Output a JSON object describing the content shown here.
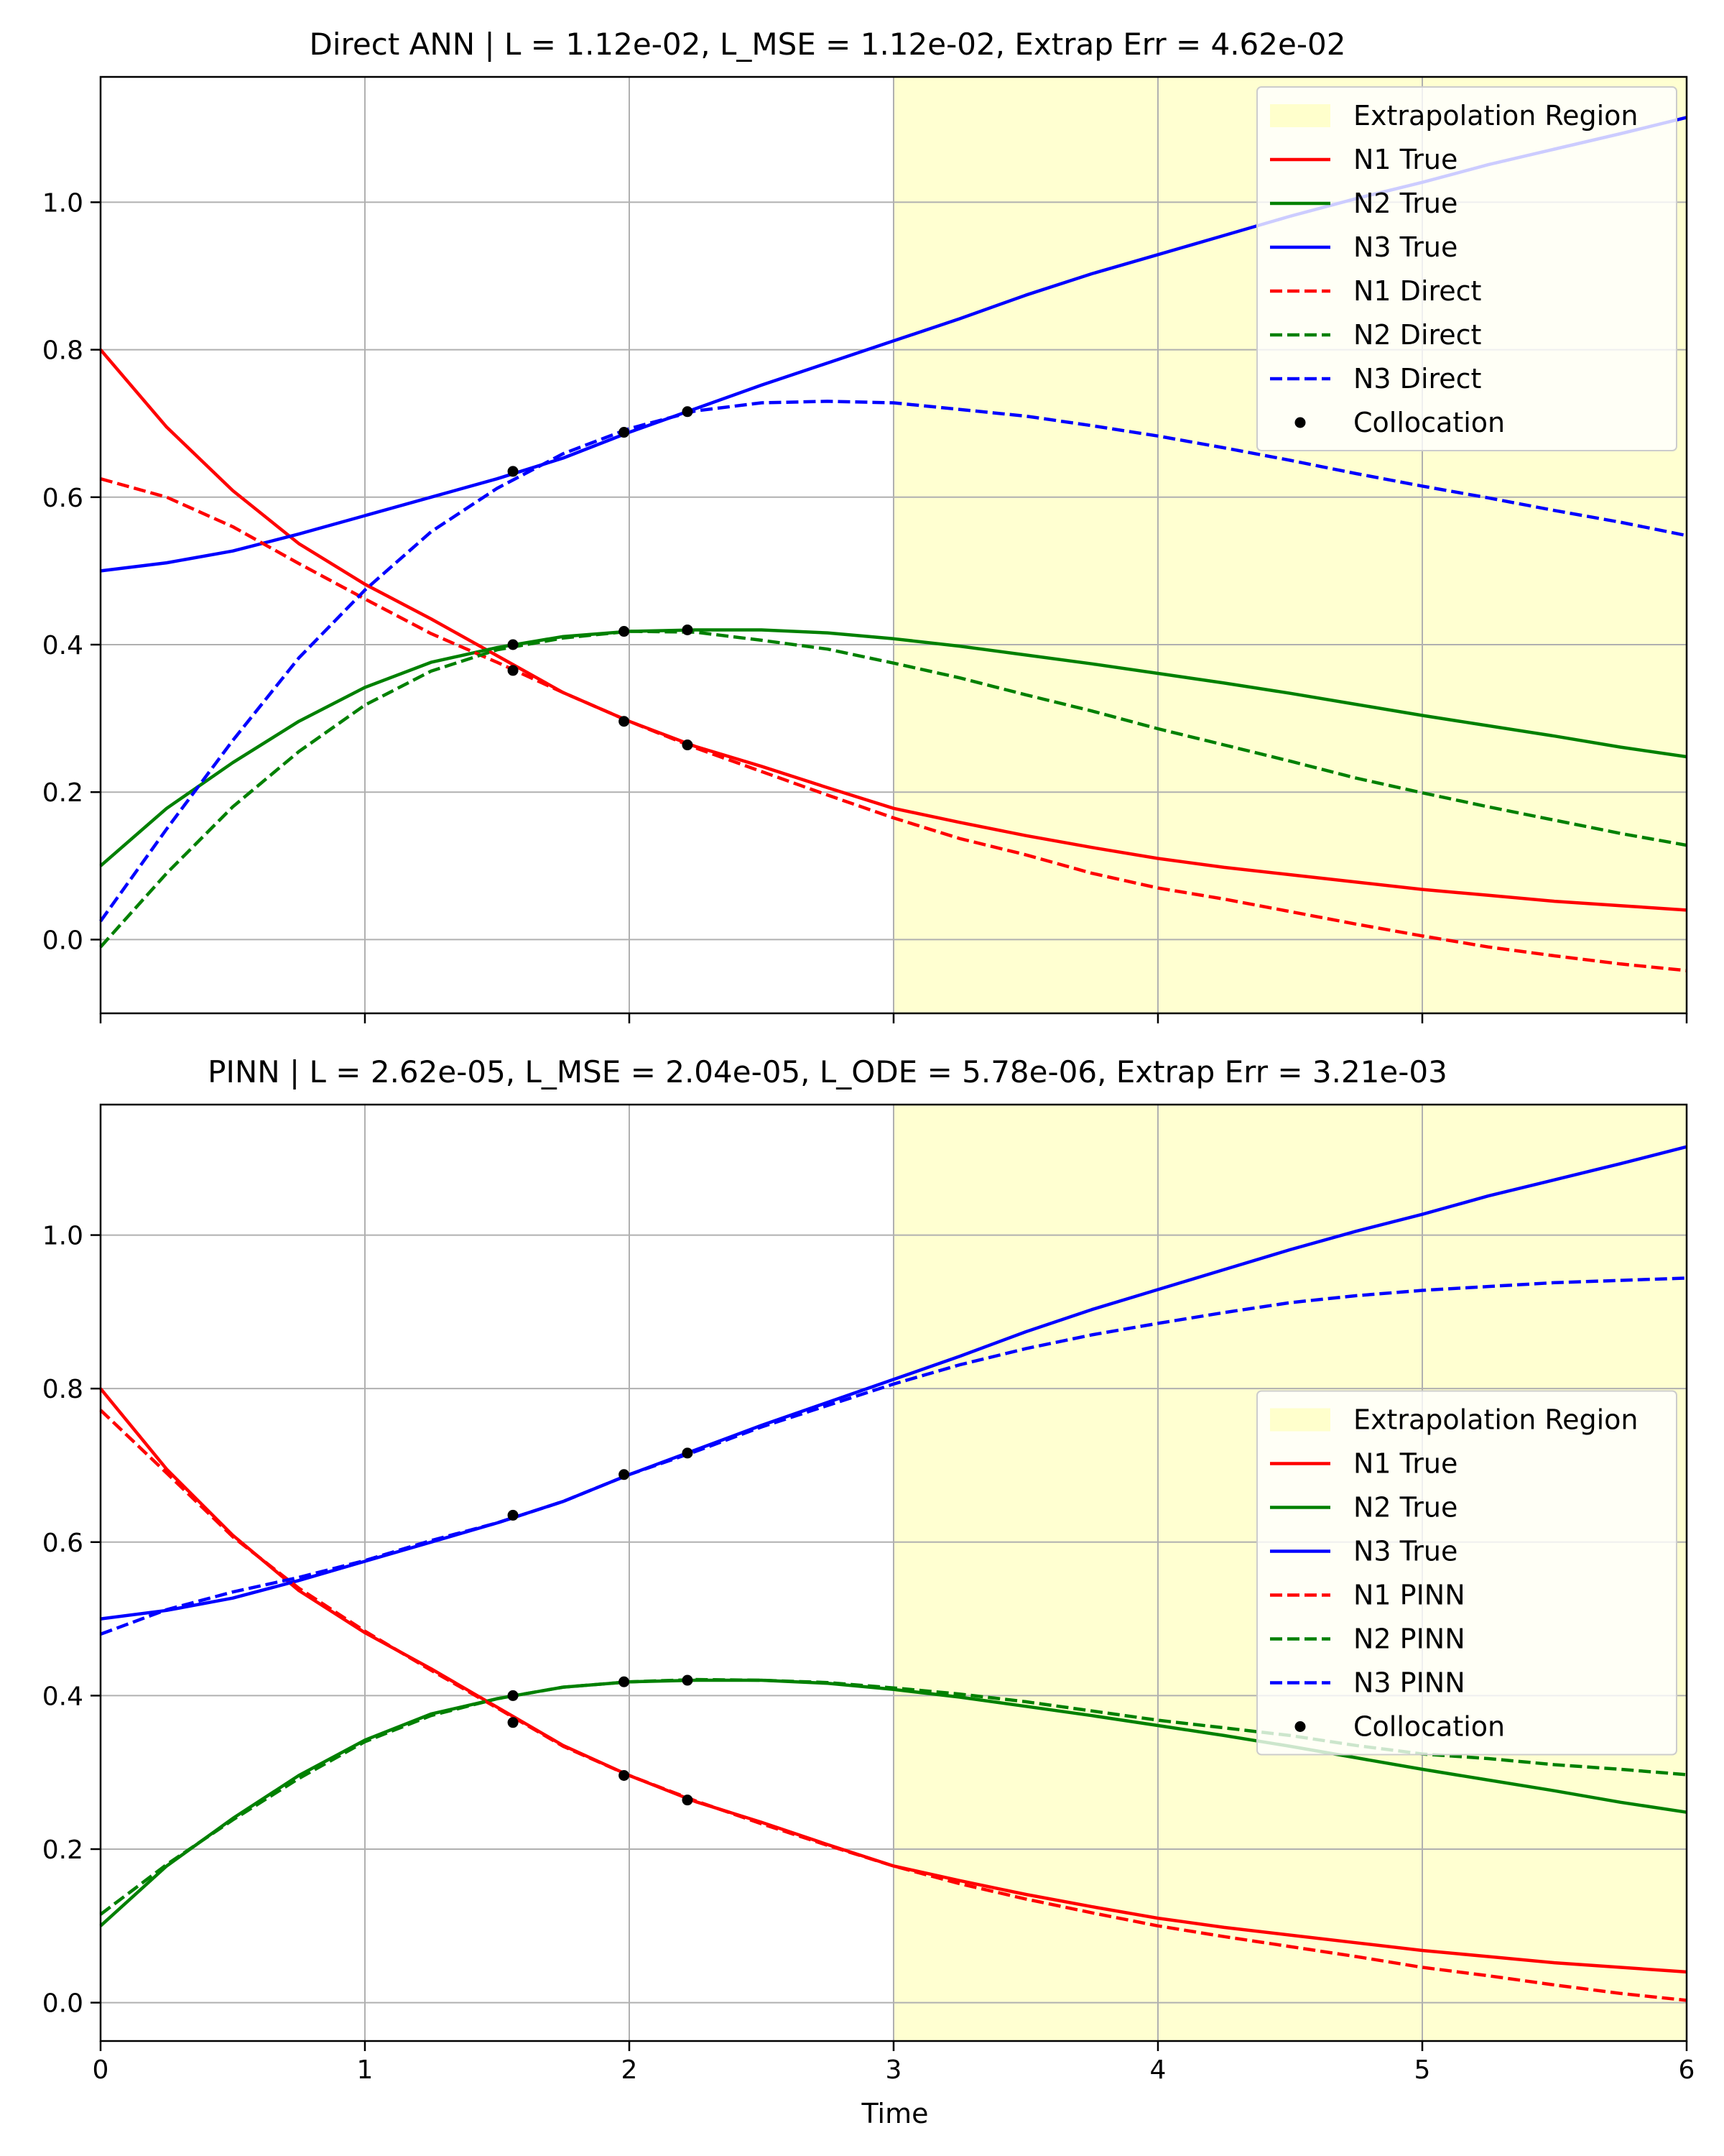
{
  "chart_data": [
    {
      "type": "line",
      "title": "Direct ANN | L = 1.12e-02, L_MSE = 1.12e-02, Extrap Err = 4.62e-02",
      "xlabel": "",
      "ylabel": "",
      "xlim": [
        0,
        6
      ],
      "ylim": [
        -0.1,
        1.17
      ],
      "xticks": [
        0,
        1,
        2,
        3,
        4,
        5,
        6
      ],
      "xtick_labels_visible": false,
      "yticks": [
        0.0,
        0.2,
        0.4,
        0.6,
        0.8,
        1.0
      ],
      "ytick_labels": [
        "0.0",
        "0.2",
        "0.4",
        "0.6",
        "0.8",
        "1.0"
      ],
      "grid": true,
      "legend_location": "upper right",
      "extrapolation_region": {
        "label": "Extrapolation Region",
        "x_start": 3,
        "x_end": 6,
        "color": "#ffffcc"
      },
      "x": [
        0,
        0.25,
        0.5,
        0.75,
        1.0,
        1.25,
        1.5,
        1.75,
        2.0,
        2.25,
        2.5,
        2.75,
        3.0,
        3.25,
        3.5,
        3.75,
        4.0,
        4.25,
        4.5,
        4.75,
        5.0,
        5.25,
        5.5,
        5.75,
        6.0
      ],
      "series": [
        {
          "name": "N1 True",
          "color": "#ff0000",
          "style": "solid",
          "values": [
            0.8,
            0.695,
            0.609,
            0.537,
            0.482,
            0.435,
            0.385,
            0.335,
            0.296,
            0.262,
            0.235,
            0.206,
            0.178,
            0.159,
            0.141,
            0.125,
            0.11,
            0.098,
            0.088,
            0.078,
            0.068,
            0.06,
            0.052,
            0.046,
            0.04
          ]
        },
        {
          "name": "N2 True",
          "color": "#008000",
          "style": "solid",
          "values": [
            0.1,
            0.178,
            0.24,
            0.296,
            0.342,
            0.376,
            0.396,
            0.411,
            0.418,
            0.42,
            0.42,
            0.416,
            0.408,
            0.398,
            0.386,
            0.374,
            0.361,
            0.348,
            0.334,
            0.319,
            0.304,
            0.29,
            0.276,
            0.261,
            0.248
          ]
        },
        {
          "name": "N3 True",
          "color": "#0000ff",
          "style": "solid",
          "values": [
            0.5,
            0.511,
            0.527,
            0.55,
            0.575,
            0.6,
            0.625,
            0.653,
            0.688,
            0.72,
            0.752,
            0.782,
            0.812,
            0.842,
            0.874,
            0.903,
            0.929,
            0.955,
            0.981,
            1.005,
            1.027,
            1.051,
            1.072,
            1.093,
            1.115
          ]
        },
        {
          "name": "N1 Direct",
          "color": "#ff0000",
          "style": "dashed",
          "values": [
            0.625,
            0.6,
            0.56,
            0.51,
            0.462,
            0.415,
            0.376,
            0.335,
            0.296,
            0.26,
            0.228,
            0.196,
            0.165,
            0.137,
            0.115,
            0.09,
            0.07,
            0.055,
            0.038,
            0.021,
            0.005,
            -0.01,
            -0.022,
            -0.033,
            -0.042
          ]
        },
        {
          "name": "N2 Direct",
          "color": "#008000",
          "style": "dashed",
          "values": [
            -0.01,
            0.09,
            0.18,
            0.255,
            0.318,
            0.364,
            0.393,
            0.409,
            0.418,
            0.417,
            0.406,
            0.394,
            0.375,
            0.355,
            0.332,
            0.31,
            0.286,
            0.264,
            0.242,
            0.219,
            0.199,
            0.18,
            0.162,
            0.144,
            0.128
          ]
        },
        {
          "name": "N3 Direct",
          "color": "#0000ff",
          "style": "dashed",
          "values": [
            0.025,
            0.15,
            0.27,
            0.382,
            0.474,
            0.553,
            0.612,
            0.659,
            0.693,
            0.717,
            0.728,
            0.73,
            0.728,
            0.719,
            0.71,
            0.697,
            0.683,
            0.667,
            0.65,
            0.632,
            0.615,
            0.599,
            0.582,
            0.566,
            0.548
          ]
        }
      ],
      "collocation": {
        "name": "Collocation",
        "color": "#000000",
        "x": [
          1.56,
          1.56,
          1.56,
          1.98,
          1.98,
          1.98,
          2.22,
          2.22,
          2.22
        ],
        "y": [
          0.365,
          0.4,
          0.635,
          0.296,
          0.418,
          0.688,
          0.264,
          0.42,
          0.716
        ]
      }
    },
    {
      "type": "line",
      "title": "PINN | L = 2.62e-05, L_MSE = 2.04e-05, L_ODE = 5.78e-06, Extrap Err = 3.21e-03",
      "xlabel": "Time",
      "ylabel": "",
      "xlim": [
        0,
        6
      ],
      "ylim": [
        -0.05,
        1.17
      ],
      "xticks": [
        0,
        1,
        2,
        3,
        4,
        5,
        6
      ],
      "xtick_labels": [
        "0",
        "1",
        "2",
        "3",
        "4",
        "5",
        "6"
      ],
      "xtick_labels_visible": true,
      "yticks": [
        0.0,
        0.2,
        0.4,
        0.6,
        0.8,
        1.0
      ],
      "ytick_labels": [
        "0.0",
        "0.2",
        "0.4",
        "0.6",
        "0.8",
        "1.0"
      ],
      "grid": true,
      "legend_location": "center right",
      "extrapolation_region": {
        "label": "Extrapolation Region",
        "x_start": 3,
        "x_end": 6,
        "color": "#ffffcc"
      },
      "x": [
        0,
        0.25,
        0.5,
        0.75,
        1.0,
        1.25,
        1.5,
        1.75,
        2.0,
        2.25,
        2.5,
        2.75,
        3.0,
        3.25,
        3.5,
        3.75,
        4.0,
        4.25,
        4.5,
        4.75,
        5.0,
        5.25,
        5.5,
        5.75,
        6.0
      ],
      "series": [
        {
          "name": "N1 True",
          "color": "#ff0000",
          "style": "solid",
          "values": [
            0.8,
            0.695,
            0.609,
            0.537,
            0.482,
            0.435,
            0.385,
            0.335,
            0.296,
            0.262,
            0.235,
            0.206,
            0.178,
            0.159,
            0.141,
            0.125,
            0.11,
            0.098,
            0.088,
            0.078,
            0.068,
            0.06,
            0.052,
            0.046,
            0.04
          ]
        },
        {
          "name": "N2 True",
          "color": "#008000",
          "style": "solid",
          "values": [
            0.1,
            0.178,
            0.24,
            0.296,
            0.342,
            0.376,
            0.396,
            0.411,
            0.418,
            0.42,
            0.42,
            0.416,
            0.408,
            0.398,
            0.386,
            0.374,
            0.361,
            0.348,
            0.334,
            0.319,
            0.304,
            0.29,
            0.276,
            0.261,
            0.248
          ]
        },
        {
          "name": "N3 True",
          "color": "#0000ff",
          "style": "solid",
          "values": [
            0.5,
            0.511,
            0.527,
            0.55,
            0.575,
            0.6,
            0.625,
            0.653,
            0.688,
            0.72,
            0.752,
            0.782,
            0.812,
            0.842,
            0.874,
            0.903,
            0.929,
            0.955,
            0.981,
            1.005,
            1.027,
            1.051,
            1.072,
            1.093,
            1.115
          ]
        },
        {
          "name": "N1 PINN",
          "color": "#ff0000",
          "style": "dashed",
          "values": [
            0.772,
            0.69,
            0.607,
            0.54,
            0.484,
            0.433,
            0.384,
            0.334,
            0.296,
            0.263,
            0.233,
            0.205,
            0.178,
            0.155,
            0.135,
            0.117,
            0.1,
            0.086,
            0.073,
            0.06,
            0.046,
            0.035,
            0.023,
            0.012,
            0.003
          ]
        },
        {
          "name": "N2 PINN",
          "color": "#008000",
          "style": "dashed",
          "values": [
            0.115,
            0.18,
            0.238,
            0.292,
            0.34,
            0.374,
            0.396,
            0.411,
            0.418,
            0.421,
            0.42,
            0.417,
            0.41,
            0.402,
            0.392,
            0.38,
            0.368,
            0.358,
            0.348,
            0.335,
            0.324,
            0.318,
            0.31,
            0.304,
            0.297
          ]
        },
        {
          "name": "N3 PINN",
          "color": "#0000ff",
          "style": "dashed",
          "values": [
            0.48,
            0.512,
            0.535,
            0.554,
            0.576,
            0.602,
            0.625,
            0.653,
            0.688,
            0.718,
            0.75,
            0.778,
            0.806,
            0.831,
            0.852,
            0.87,
            0.885,
            0.899,
            0.912,
            0.921,
            0.928,
            0.933,
            0.938,
            0.941,
            0.944
          ]
        }
      ],
      "collocation": {
        "name": "Collocation",
        "color": "#000000",
        "x": [
          1.56,
          1.56,
          1.56,
          1.98,
          1.98,
          1.98,
          2.22,
          2.22,
          2.22
        ],
        "y": [
          0.365,
          0.4,
          0.635,
          0.296,
          0.418,
          0.688,
          0.264,
          0.42,
          0.716
        ]
      }
    }
  ]
}
